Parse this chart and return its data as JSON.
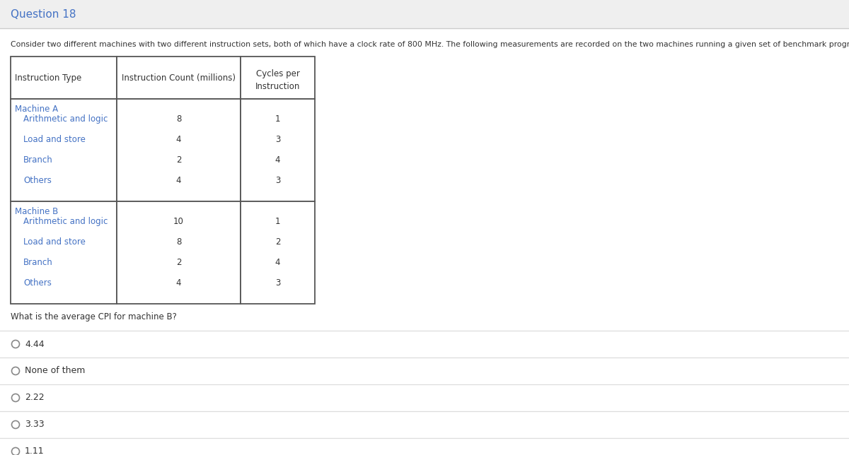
{
  "title": "Question 18",
  "description": "Consider two different machines with two different instruction sets, both of which have a clock rate of 800 MHz. The following measurements are recorded on the two machines running a given set of benchmark programs.",
  "col_headers": [
    "Instruction Type",
    "Instruction Count (millions)",
    "Cycles per\nInstruction"
  ],
  "machine_a_label": "Machine A",
  "machine_b_label": "Machine B",
  "machine_a_rows": [
    [
      "Arithmetic and logic",
      "8",
      "1"
    ],
    [
      "Load and store",
      "4",
      "3"
    ],
    [
      "Branch",
      "2",
      "4"
    ],
    [
      "Others",
      "4",
      "3"
    ]
  ],
  "machine_b_rows": [
    [
      "Arithmetic and logic",
      "10",
      "1"
    ],
    [
      "Load and store",
      "8",
      "2"
    ],
    [
      "Branch",
      "2",
      "4"
    ],
    [
      "Others",
      "4",
      "3"
    ]
  ],
  "question": "What is the average CPI for machine B?",
  "options": [
    "4.44",
    "None of them",
    "2.22",
    "3.33",
    "1.11"
  ],
  "title_bg": "#efefef",
  "white_bg": "#ffffff",
  "sep_color": "#cccccc",
  "border_color": "#555555",
  "text_color": "#333333",
  "blue_text": "#4472C4",
  "title_text_color": "#4472C4",
  "opt_sep_color": "#dddddd",
  "circle_color": "#888888"
}
